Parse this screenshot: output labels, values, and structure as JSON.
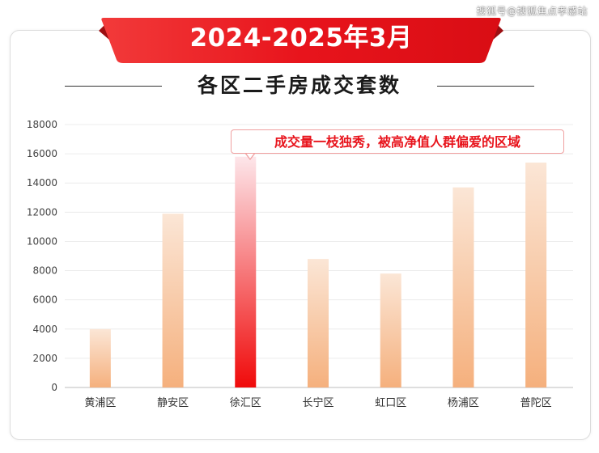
{
  "watermark": "搜狐号@搜狐焦点孝感站",
  "banner": {
    "title": "2024-2025年3月"
  },
  "subtitle": "各区二手房成交套数",
  "callout": "成交量一枝独秀，被高净值人群偏爱的区域",
  "colors": {
    "banner": "#e8141c",
    "bar_top": "#fbe6d6",
    "bar_bottom": "#f5b07d",
    "highlight_top": "#fde6ea",
    "highlight_bottom": "#f00a0a"
  },
  "chart_data": {
    "type": "bar",
    "categories": [
      "黄浦区",
      "静安区",
      "徐汇区",
      "长宁区",
      "虹口区",
      "杨浦区",
      "普陀区"
    ],
    "values": [
      4000,
      11900,
      15800,
      8800,
      7800,
      13700,
      15400
    ],
    "highlight_index": 2,
    "ylim": [
      0,
      18000
    ],
    "yticks": [
      "0",
      "2000",
      "4000",
      "6000",
      "8000",
      "10000",
      "12000",
      "14000",
      "16000",
      "18000"
    ],
    "grid": true,
    "legend": "none"
  }
}
